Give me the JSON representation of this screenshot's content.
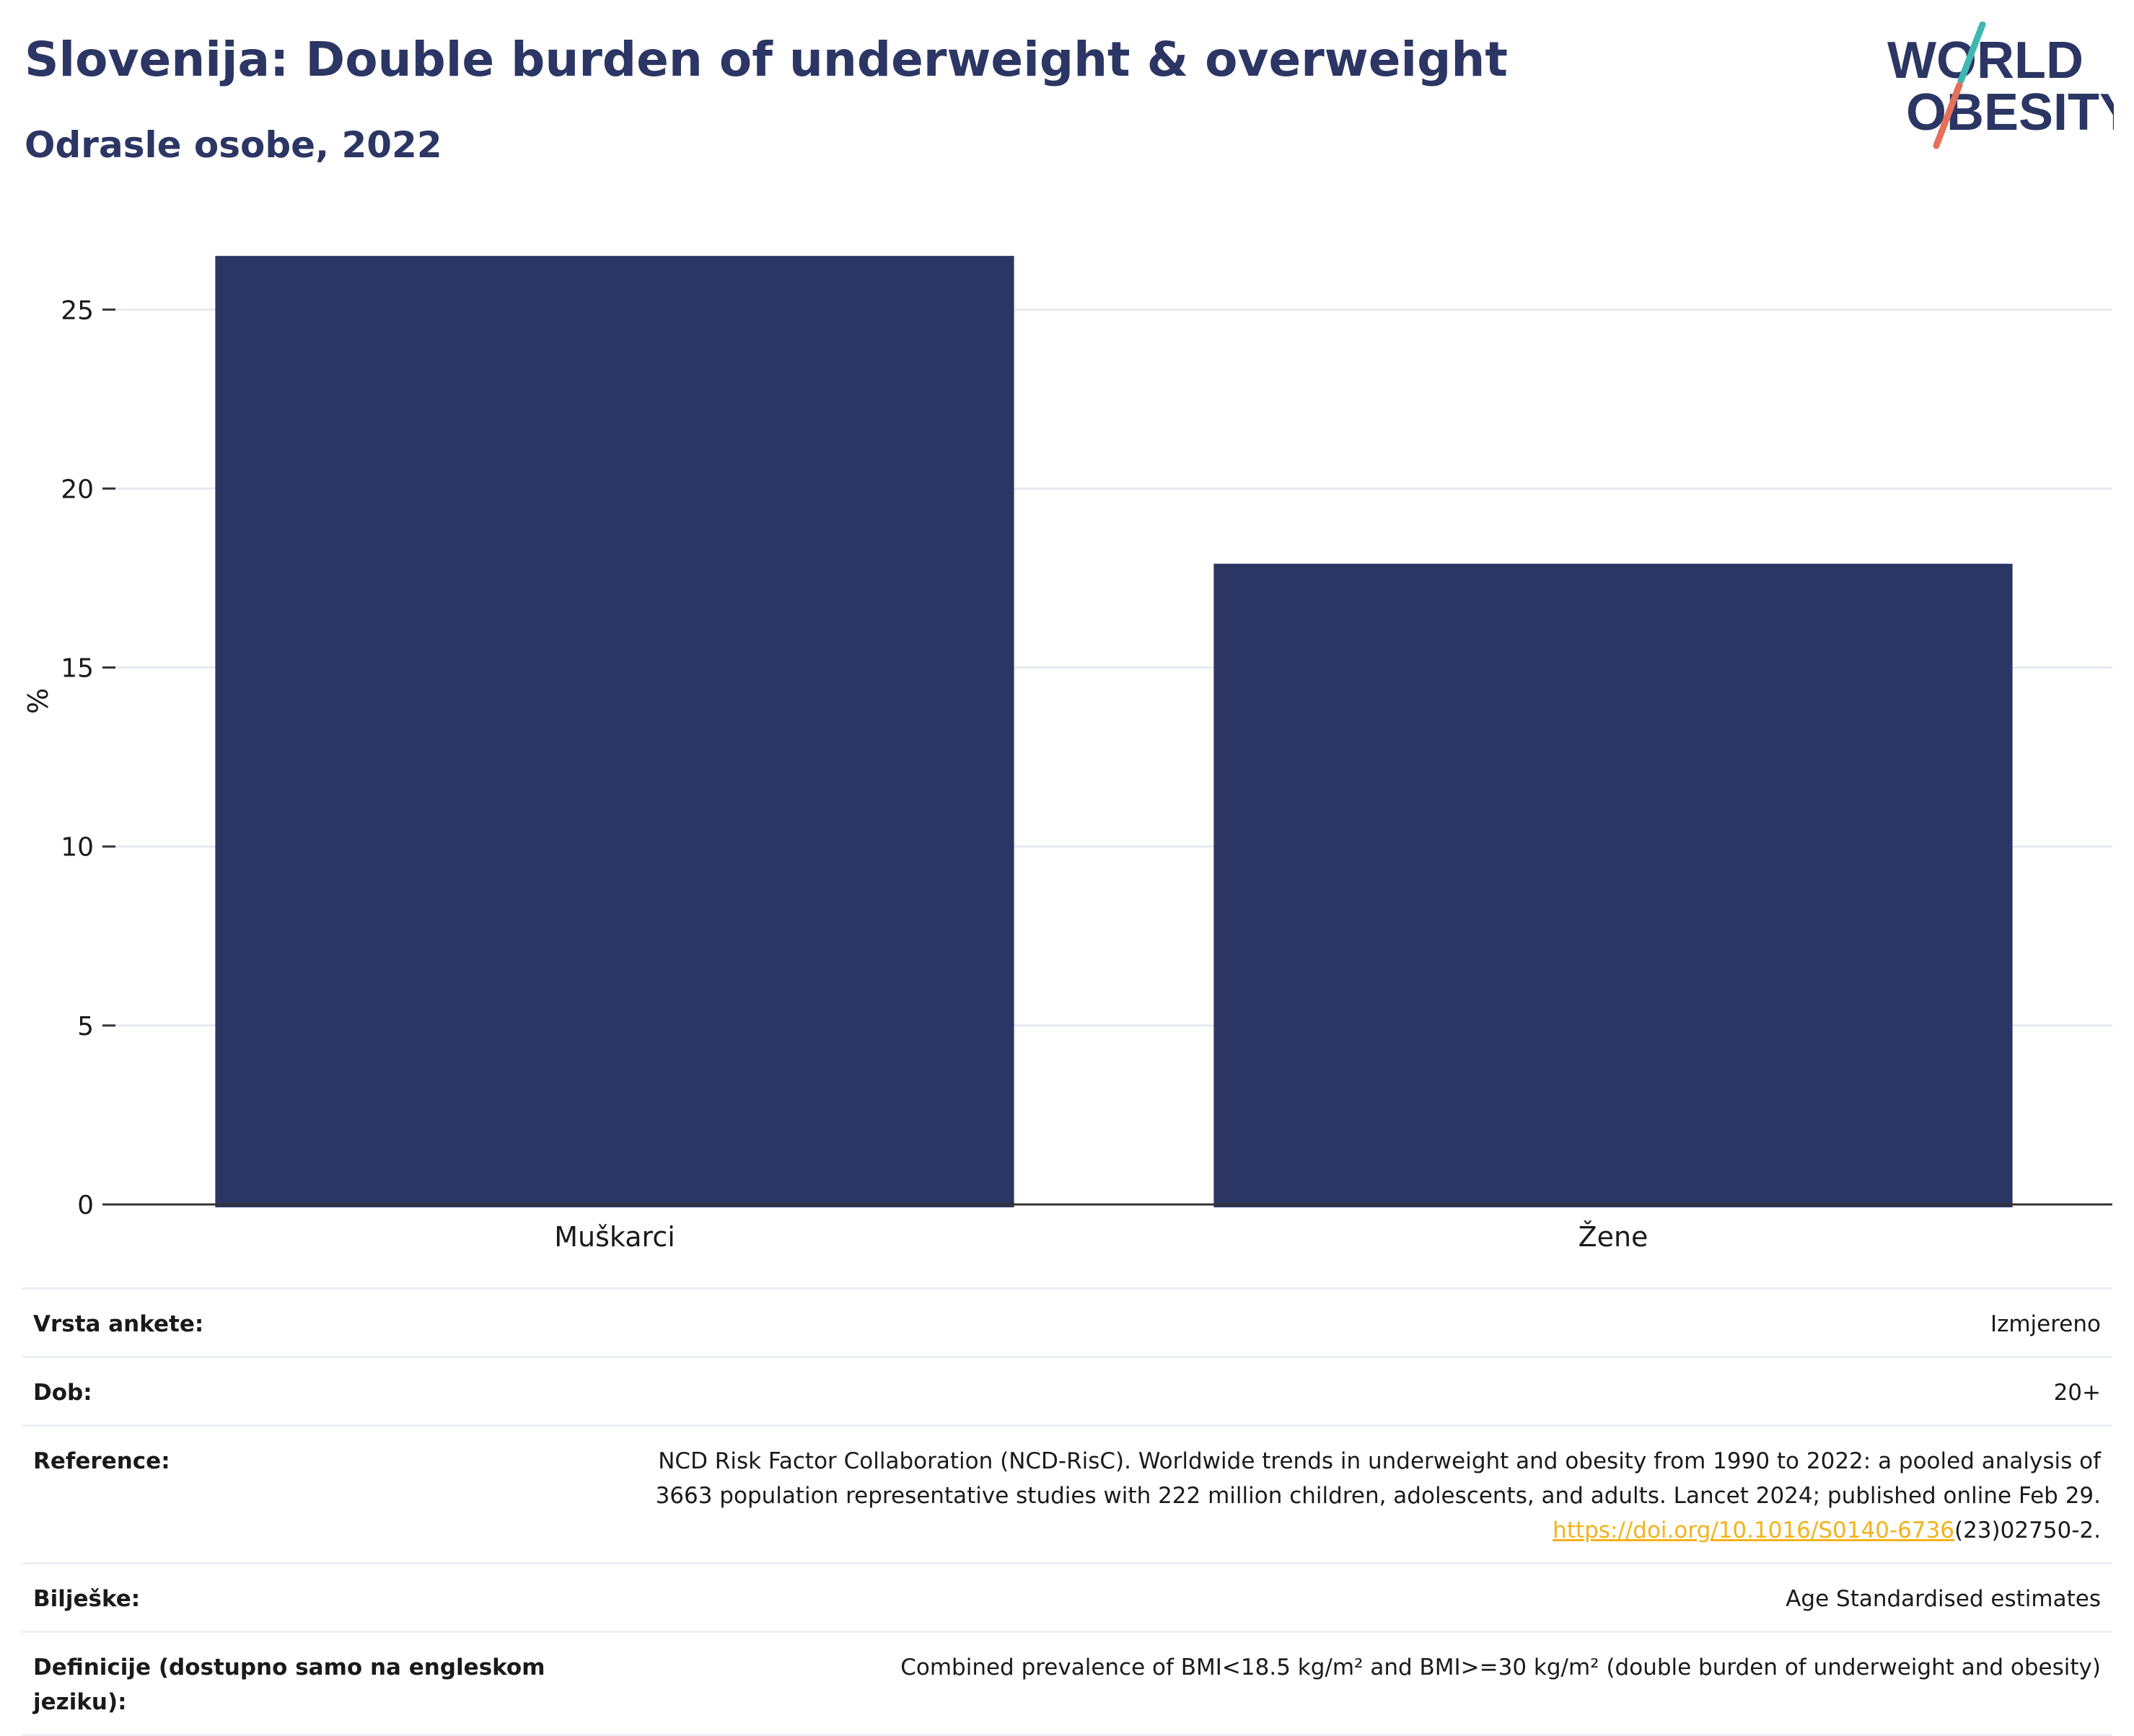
{
  "header": {
    "title": "Slovenija: Double burden of underweight & overweight",
    "subtitle": "Odrasle osobe, 2022"
  },
  "logo": {
    "line1": "WORLD",
    "line2": "OBESITY",
    "colors": {
      "text": "#2b3664",
      "slash_top": "#3fb8b3",
      "slash_bottom": "#e3705a"
    }
  },
  "chart_data": {
    "type": "bar",
    "categories": [
      "Muškarci",
      "Žene"
    ],
    "values": [
      26.5,
      17.9
    ],
    "ylabel": "%",
    "xlabel": "",
    "ylim": [
      0,
      27
    ],
    "yticks": [
      0,
      5,
      10,
      15,
      20,
      25
    ],
    "grid": true,
    "bar_color": "#2b3664"
  },
  "meta": {
    "rows": [
      {
        "label": "Vrsta ankete:",
        "value": "Izmjereno"
      },
      {
        "label": "Dob:",
        "value": "20+"
      },
      {
        "label": "Reference:",
        "value_line1": "NCD Risk Factor Collaboration (NCD-RisC). Worldwide trends in underweight and obesity from 1990 to 2022: a pooled analysis of",
        "value_line2": "3663 population representative studies with 222 million children, adolescents, and adults. Lancet 2024; published online Feb 29.",
        "link_text": "https://doi.org/10.1016/S0140-6736",
        "link_suffix": "(23)02750-2."
      },
      {
        "label": "Bilješke:",
        "value": "Age Standardised estimates"
      },
      {
        "label": "Definicije (dostupno samo na engleskom jeziku):",
        "value": "Combined prevalence of BMI<18.5 kg/m² and BMI>=30 kg/m² (double burden of underweight and obesity)"
      }
    ],
    "link_color": "#f2b31b"
  }
}
